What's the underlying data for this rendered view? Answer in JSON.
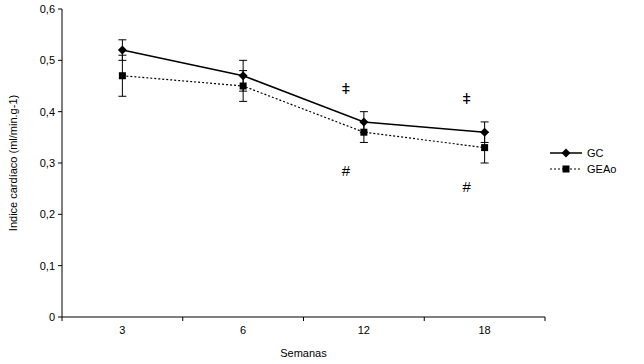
{
  "chart_data": {
    "type": "line",
    "x_label": "Semanas",
    "y_label": "Indice cardíaco (ml/min.g-1)",
    "categories": [
      "3",
      "6",
      "12",
      "18"
    ],
    "series": [
      {
        "name": "GC",
        "color": "#000000",
        "line_style": "solid",
        "marker": "diamond",
        "values": [
          0.52,
          0.47,
          0.38,
          0.36
        ],
        "errors": [
          0.02,
          0.03,
          0.02,
          0.02
        ]
      },
      {
        "name": "GEAo",
        "color": "#000000",
        "line_style": "dotted",
        "marker": "square",
        "values": [
          0.47,
          0.45,
          0.36,
          0.33
        ],
        "errors": [
          0.04,
          0.03,
          0.02,
          0.03
        ]
      }
    ],
    "ylim": [
      0,
      0.6
    ],
    "yticks": [
      {
        "value": 0,
        "label": "0"
      },
      {
        "value": 0.1,
        "label": "0,1"
      },
      {
        "value": 0.2,
        "label": "0,2"
      },
      {
        "value": 0.3,
        "label": "0,3"
      },
      {
        "value": 0.4,
        "label": "0,4"
      },
      {
        "value": 0.5,
        "label": "0,5"
      },
      {
        "value": 0.6,
        "label": "0,6"
      }
    ],
    "grid": false,
    "legend": "right",
    "annotations": [
      {
        "text": "ǂ",
        "x": "12",
        "series": "GC"
      },
      {
        "text": "ǂ",
        "x": "18",
        "series": "GC"
      },
      {
        "text": "#",
        "x": "12",
        "series": "GEAo"
      },
      {
        "text": "#",
        "x": "18",
        "series": "GEAo"
      }
    ]
  }
}
